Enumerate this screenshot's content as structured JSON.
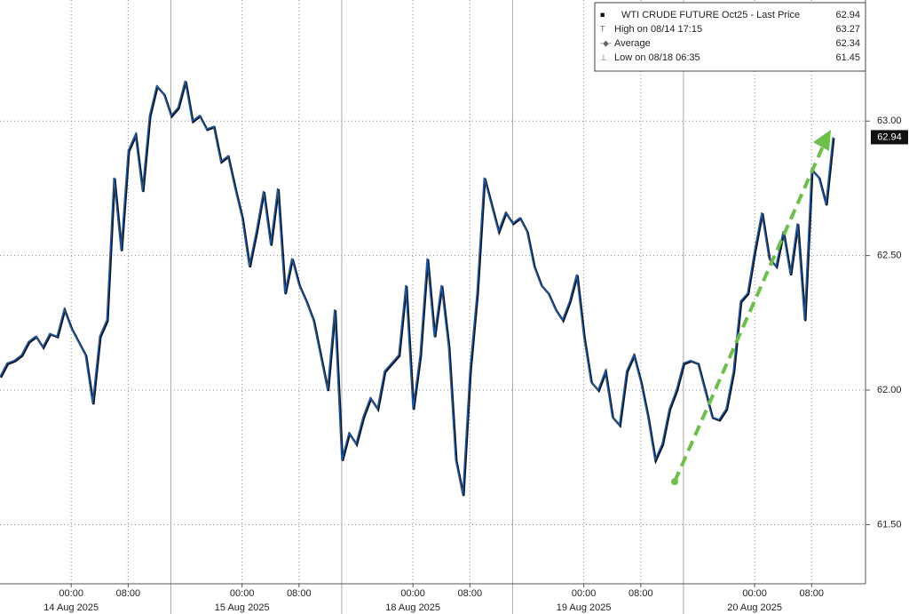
{
  "chart_data": {
    "type": "line",
    "categories": [
      null,
      null,
      null,
      null,
      null,
      null,
      null,
      null,
      null,
      null,
      "00:00",
      null,
      null,
      null,
      null,
      null,
      null,
      null,
      "08:00",
      null,
      null,
      null,
      null,
      null,
      null,
      null,
      null,
      null,
      null,
      null,
      null,
      null,
      null,
      null,
      "00:00",
      null,
      null,
      null,
      null,
      null,
      null,
      null,
      "08:00",
      null,
      null,
      null,
      null,
      null,
      null,
      null,
      null,
      null,
      null,
      null,
      null,
      null,
      null,
      null,
      "00:00",
      null,
      null,
      null,
      null,
      null,
      null,
      null,
      "08:00",
      null,
      null,
      null,
      null,
      null,
      null,
      null,
      null,
      null,
      null,
      null,
      null,
      null,
      null,
      null,
      "00:00",
      null,
      null,
      null,
      null,
      null,
      null,
      null,
      "08:00",
      null,
      null,
      null,
      null,
      null,
      null,
      null,
      null,
      null,
      null,
      null,
      null,
      null,
      null,
      null,
      "00:00",
      null,
      null,
      null,
      null,
      null,
      null,
      null,
      "08:00",
      null,
      null,
      null
    ],
    "dates": [
      null,
      null,
      null,
      null,
      null,
      null,
      null,
      null,
      null,
      null,
      "14 Aug 2025",
      null,
      null,
      null,
      null,
      null,
      null,
      null,
      null,
      null,
      null,
      null,
      null,
      null,
      null,
      null,
      null,
      null,
      null,
      null,
      null,
      null,
      null,
      null,
      "15 Aug 2025",
      null,
      null,
      null,
      null,
      null,
      null,
      null,
      null,
      null,
      null,
      null,
      null,
      null,
      null,
      null,
      null,
      null,
      null,
      null,
      null,
      null,
      null,
      null,
      "18 Aug 2025",
      null,
      null,
      null,
      null,
      null,
      null,
      null,
      null,
      null,
      null,
      null,
      null,
      null,
      null,
      null,
      null,
      null,
      null,
      null,
      null,
      null,
      null,
      null,
      "19 Aug 2025",
      null,
      null,
      null,
      null,
      null,
      null,
      null,
      null,
      null,
      null,
      null,
      null,
      null,
      null,
      null,
      null,
      null,
      null,
      null,
      null,
      null,
      null,
      null,
      "20 Aug 2025",
      null,
      null,
      null,
      null,
      null,
      null,
      null,
      null,
      null,
      null,
      null
    ],
    "series": [
      {
        "name": "WTI CRUDE FUTURE Oct25 - Last Price",
        "color": "#1d5aa6",
        "values": [
          62.05,
          62.1,
          62.11,
          62.13,
          62.18,
          62.2,
          62.16,
          62.21,
          62.2,
          62.3,
          62.23,
          62.18,
          62.13,
          61.95,
          62.2,
          62.26,
          62.79,
          62.52,
          62.89,
          62.95,
          62.74,
          63.02,
          63.13,
          63.1,
          63.02,
          63.05,
          63.15,
          63.0,
          63.02,
          62.97,
          62.98,
          62.85,
          62.87,
          62.75,
          62.64,
          62.46,
          62.59,
          62.74,
          62.54,
          62.75,
          62.36,
          62.49,
          62.39,
          62.33,
          62.26,
          62.13,
          62.0,
          62.3,
          61.74,
          61.84,
          61.8,
          61.9,
          61.97,
          61.93,
          62.07,
          62.1,
          62.13,
          62.39,
          61.93,
          62.13,
          62.49,
          62.2,
          62.39,
          62.16,
          61.74,
          61.61,
          62.07,
          62.36,
          62.79,
          62.69,
          62.59,
          62.66,
          62.62,
          62.64,
          62.59,
          62.46,
          62.39,
          62.36,
          62.3,
          62.26,
          62.33,
          62.43,
          62.2,
          62.03,
          62.0,
          62.07,
          61.9,
          61.87,
          62.07,
          62.13,
          62.03,
          61.9,
          61.74,
          61.8,
          61.93,
          62.0,
          62.1,
          62.11,
          62.1,
          62.0,
          61.9,
          61.89,
          61.93,
          62.07,
          62.33,
          62.36,
          62.52,
          62.66,
          62.49,
          62.46,
          62.59,
          62.43,
          62.62,
          62.26,
          62.82,
          62.79,
          62.69,
          62.94
        ]
      }
    ],
    "legend": [
      {
        "label": "WTI CRUDE FUTURE Oct25 - Last Price",
        "value": 62.94
      },
      {
        "label": "High on 08/14 17:15",
        "value": 63.27
      },
      {
        "label": "Average",
        "value": 62.34
      },
      {
        "label": "Low on 08/18 06:35",
        "value": 61.45
      }
    ],
    "ylim": [
      61.28,
      63.45
    ],
    "yticks": [
      {
        "value": 61.5,
        "label": "61.50"
      },
      {
        "value": 62,
        "label": "62.00"
      },
      {
        "value": 62.5,
        "label": "62.50"
      },
      {
        "value": 63,
        "label": "63.00"
      }
    ],
    "grid": true
  }
}
